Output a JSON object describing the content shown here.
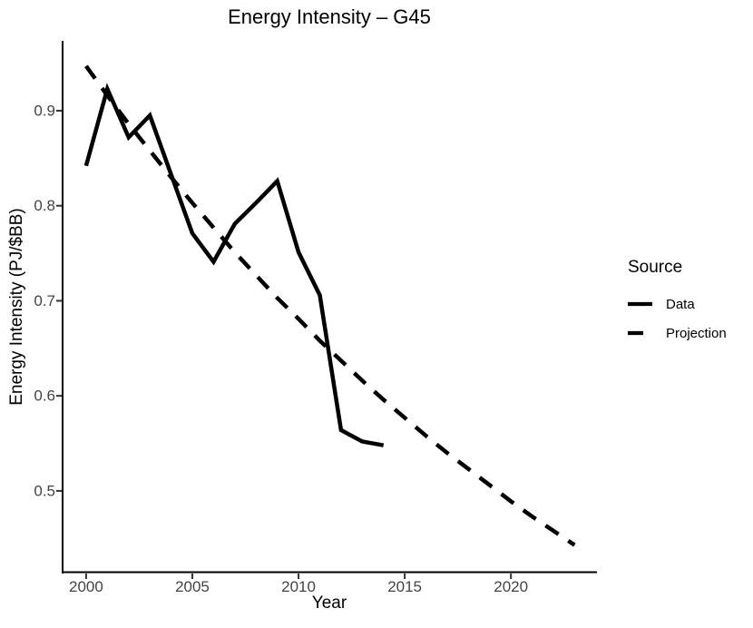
{
  "chart_data": {
    "type": "line",
    "title": "Energy Intensity – G45",
    "xlabel": "Year",
    "ylabel": "Energy Intensity (PJ/$BB)",
    "xlim": [
      1998.85,
      2024.05
    ],
    "ylim": [
      0.414,
      0.9735
    ],
    "x_ticks": [
      2000,
      2005,
      2010,
      2015,
      2020
    ],
    "y_ticks": [
      0.5,
      0.6,
      0.7,
      0.8,
      0.9
    ],
    "grid": false,
    "background": "#ffffff",
    "line_color": "#000000",
    "tick_label_color": "#444444",
    "legend_position": "right",
    "legend_title": "Source",
    "series": [
      {
        "name": "Data",
        "linetype": "solid",
        "x": [
          2000,
          2001,
          2002,
          2003,
          2004,
          2005,
          2006,
          2007,
          2008,
          2009,
          2010,
          2011,
          2012,
          2013,
          2014
        ],
        "values": [
          0.842,
          0.923,
          0.872,
          0.895,
          0.833,
          0.771,
          0.741,
          0.781,
          0.803,
          0.826,
          0.751,
          0.706,
          0.564,
          0.552,
          0.548
        ]
      },
      {
        "name": "Projection",
        "linetype": "dashed",
        "x": [
          2000,
          2001,
          2002,
          2003,
          2004,
          2005,
          2006,
          2007,
          2008,
          2009,
          2010,
          2011,
          2012,
          2013,
          2014,
          2015,
          2016,
          2017,
          2018,
          2019,
          2020,
          2021,
          2022,
          2023
        ],
        "values": [
          0.947,
          0.916,
          0.886,
          0.858,
          0.83,
          0.803,
          0.777,
          0.751,
          0.727,
          0.703,
          0.681,
          0.658,
          0.637,
          0.616,
          0.596,
          0.577,
          0.558,
          0.54,
          0.523,
          0.506,
          0.489,
          0.473,
          0.458,
          0.443
        ]
      }
    ]
  }
}
